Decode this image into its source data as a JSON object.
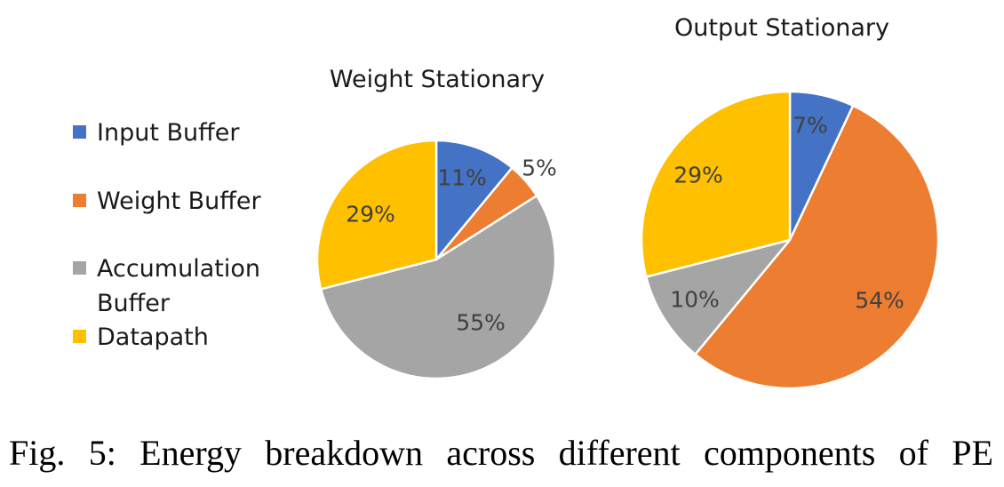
{
  "chart_data": [
    {
      "type": "pie",
      "title": "Weight Stationary",
      "categories": [
        "Input Buffer",
        "Weight Buffer",
        "Accumulation Buffer",
        "Datapath"
      ],
      "values": [
        11,
        5,
        55,
        29
      ],
      "labels": [
        "11%",
        "5%",
        "55%",
        "29%"
      ],
      "colors": [
        "#4472c4",
        "#ed7d31",
        "#a5a5a5",
        "#ffc000"
      ]
    },
    {
      "type": "pie",
      "title": "Output Stationary",
      "categories": [
        "Input Buffer",
        "Weight Buffer",
        "Accumulation Buffer",
        "Datapath"
      ],
      "values": [
        7,
        54,
        10,
        29
      ],
      "labels": [
        "7%",
        "54%",
        "10%",
        "29%"
      ],
      "colors": [
        "#4472c4",
        "#ed7d31",
        "#a5a5a5",
        "#ffc000"
      ]
    }
  ],
  "legend": {
    "placement": "left",
    "items": [
      {
        "label": "Input Buffer",
        "color": "#4472c4"
      },
      {
        "label": "Weight Buffer",
        "color": "#ed7d31"
      },
      {
        "label": "Accumulation Buffer",
        "color": "#a5a5a5"
      },
      {
        "label": "Datapath",
        "color": "#ffc000"
      }
    ]
  },
  "caption": "Fig. 5: Energy breakdown across different components of PE"
}
